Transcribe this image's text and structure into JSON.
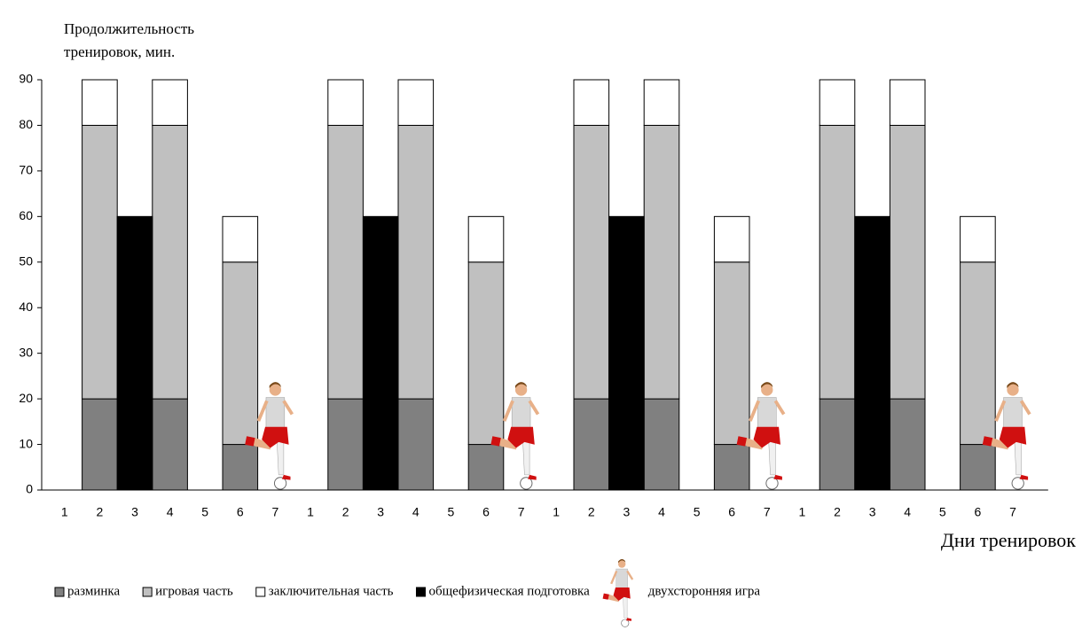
{
  "chart_data": {
    "type": "bar",
    "stacked": true,
    "ylabel": "Продолжительность тренировок, мин.",
    "xlabel": "Дни тренировок",
    "categories": [
      "1",
      "2",
      "3",
      "4",
      "5",
      "6",
      "7",
      "1",
      "2",
      "3",
      "4",
      "5",
      "6",
      "7",
      "1",
      "2",
      "3",
      "4",
      "5",
      "6",
      "7",
      "1",
      "2",
      "3",
      "4",
      "5",
      "6",
      "7"
    ],
    "series": [
      {
        "name": "разминка",
        "color": "#808080",
        "values": [
          null,
          20,
          null,
          20,
          null,
          10,
          null,
          null,
          20,
          null,
          20,
          null,
          10,
          null,
          null,
          20,
          null,
          20,
          null,
          10,
          null,
          null,
          20,
          null,
          20,
          null,
          10,
          null
        ]
      },
      {
        "name": "игровая часть",
        "color": "#c0c0c0",
        "values": [
          null,
          60,
          null,
          60,
          null,
          40,
          null,
          null,
          60,
          null,
          60,
          null,
          40,
          null,
          null,
          60,
          null,
          60,
          null,
          40,
          null,
          null,
          60,
          null,
          60,
          null,
          40,
          null
        ]
      },
      {
        "name": "заключительная часть",
        "color": "#ffffff",
        "values": [
          null,
          10,
          null,
          10,
          null,
          10,
          null,
          null,
          10,
          null,
          10,
          null,
          10,
          null,
          null,
          10,
          null,
          10,
          null,
          10,
          null,
          null,
          10,
          null,
          10,
          null,
          10,
          null
        ]
      },
      {
        "name": "общефизическая подготовка",
        "color": "#000000",
        "values": [
          null,
          null,
          60,
          null,
          null,
          null,
          null,
          null,
          null,
          60,
          null,
          null,
          null,
          null,
          null,
          null,
          60,
          null,
          null,
          null,
          null,
          null,
          null,
          60,
          null,
          null,
          null,
          null
        ]
      },
      {
        "name": "двухсторонняя игра",
        "color": "#d01010",
        "marker": "player",
        "values": [
          null,
          null,
          null,
          null,
          null,
          null,
          24,
          null,
          null,
          null,
          null,
          null,
          null,
          24,
          null,
          null,
          null,
          null,
          null,
          null,
          24,
          null,
          null,
          null,
          null,
          null,
          null,
          24
        ]
      }
    ],
    "ylim": [
      0,
      90
    ],
    "yticks": [
      0,
      10,
      20,
      30,
      40,
      50,
      60,
      70,
      80,
      90
    ]
  }
}
